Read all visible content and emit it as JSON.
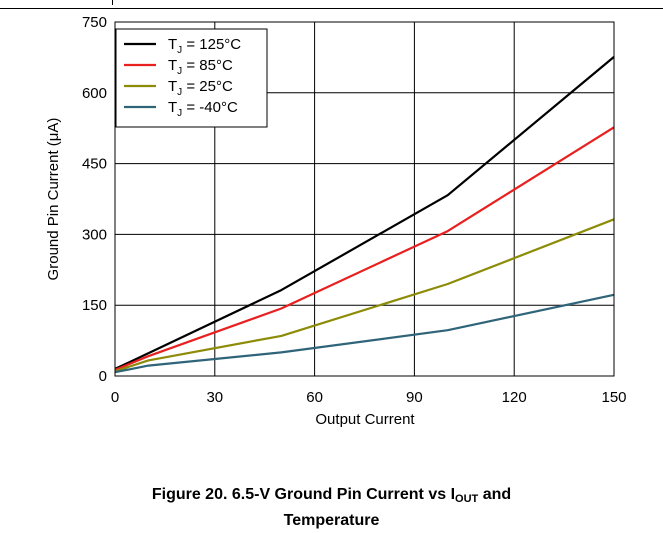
{
  "chart_data": {
    "type": "line",
    "xlabel": "Output Current",
    "ylabel": "Ground Pin Current (μA)",
    "xlim": [
      0,
      150
    ],
    "ylim": [
      0,
      750
    ],
    "xticks": [
      "0",
      "30",
      "60",
      "90",
      "120",
      "150"
    ],
    "yticks": [
      "0",
      "150",
      "300",
      "450",
      "600",
      "750"
    ],
    "grid": true,
    "legend_position": "top-left",
    "series": [
      {
        "name_main": "T",
        "name_sub": "J",
        "name_rest": " = 125°C",
        "color": "#000000",
        "x": [
          0,
          10,
          50,
          100,
          150
        ],
        "y": [
          15,
          48,
          182,
          383,
          676
        ]
      },
      {
        "name_main": "T",
        "name_sub": "J",
        "name_rest": " = 85°C",
        "color": "#e8201f",
        "x": [
          0,
          10,
          50,
          100,
          150
        ],
        "y": [
          13,
          42,
          143,
          307,
          527
        ]
      },
      {
        "name_main": "T",
        "name_sub": "J",
        "name_rest": " = 25°C",
        "color": "#8c8c08",
        "x": [
          0,
          10,
          50,
          100,
          150
        ],
        "y": [
          10,
          33,
          85,
          195,
          332
        ]
      },
      {
        "name_main": "T",
        "name_sub": "J",
        "name_rest": " = -40°C",
        "color": "#2f6479",
        "x": [
          0,
          10,
          50,
          100,
          150
        ],
        "y": [
          8,
          22,
          50,
          97,
          172
        ]
      }
    ]
  },
  "caption": {
    "prefix": "Figure 20. 6.5-V Ground Pin Current vs I",
    "sub": "OUT",
    "suffix": " and",
    "line2": "Temperature"
  }
}
